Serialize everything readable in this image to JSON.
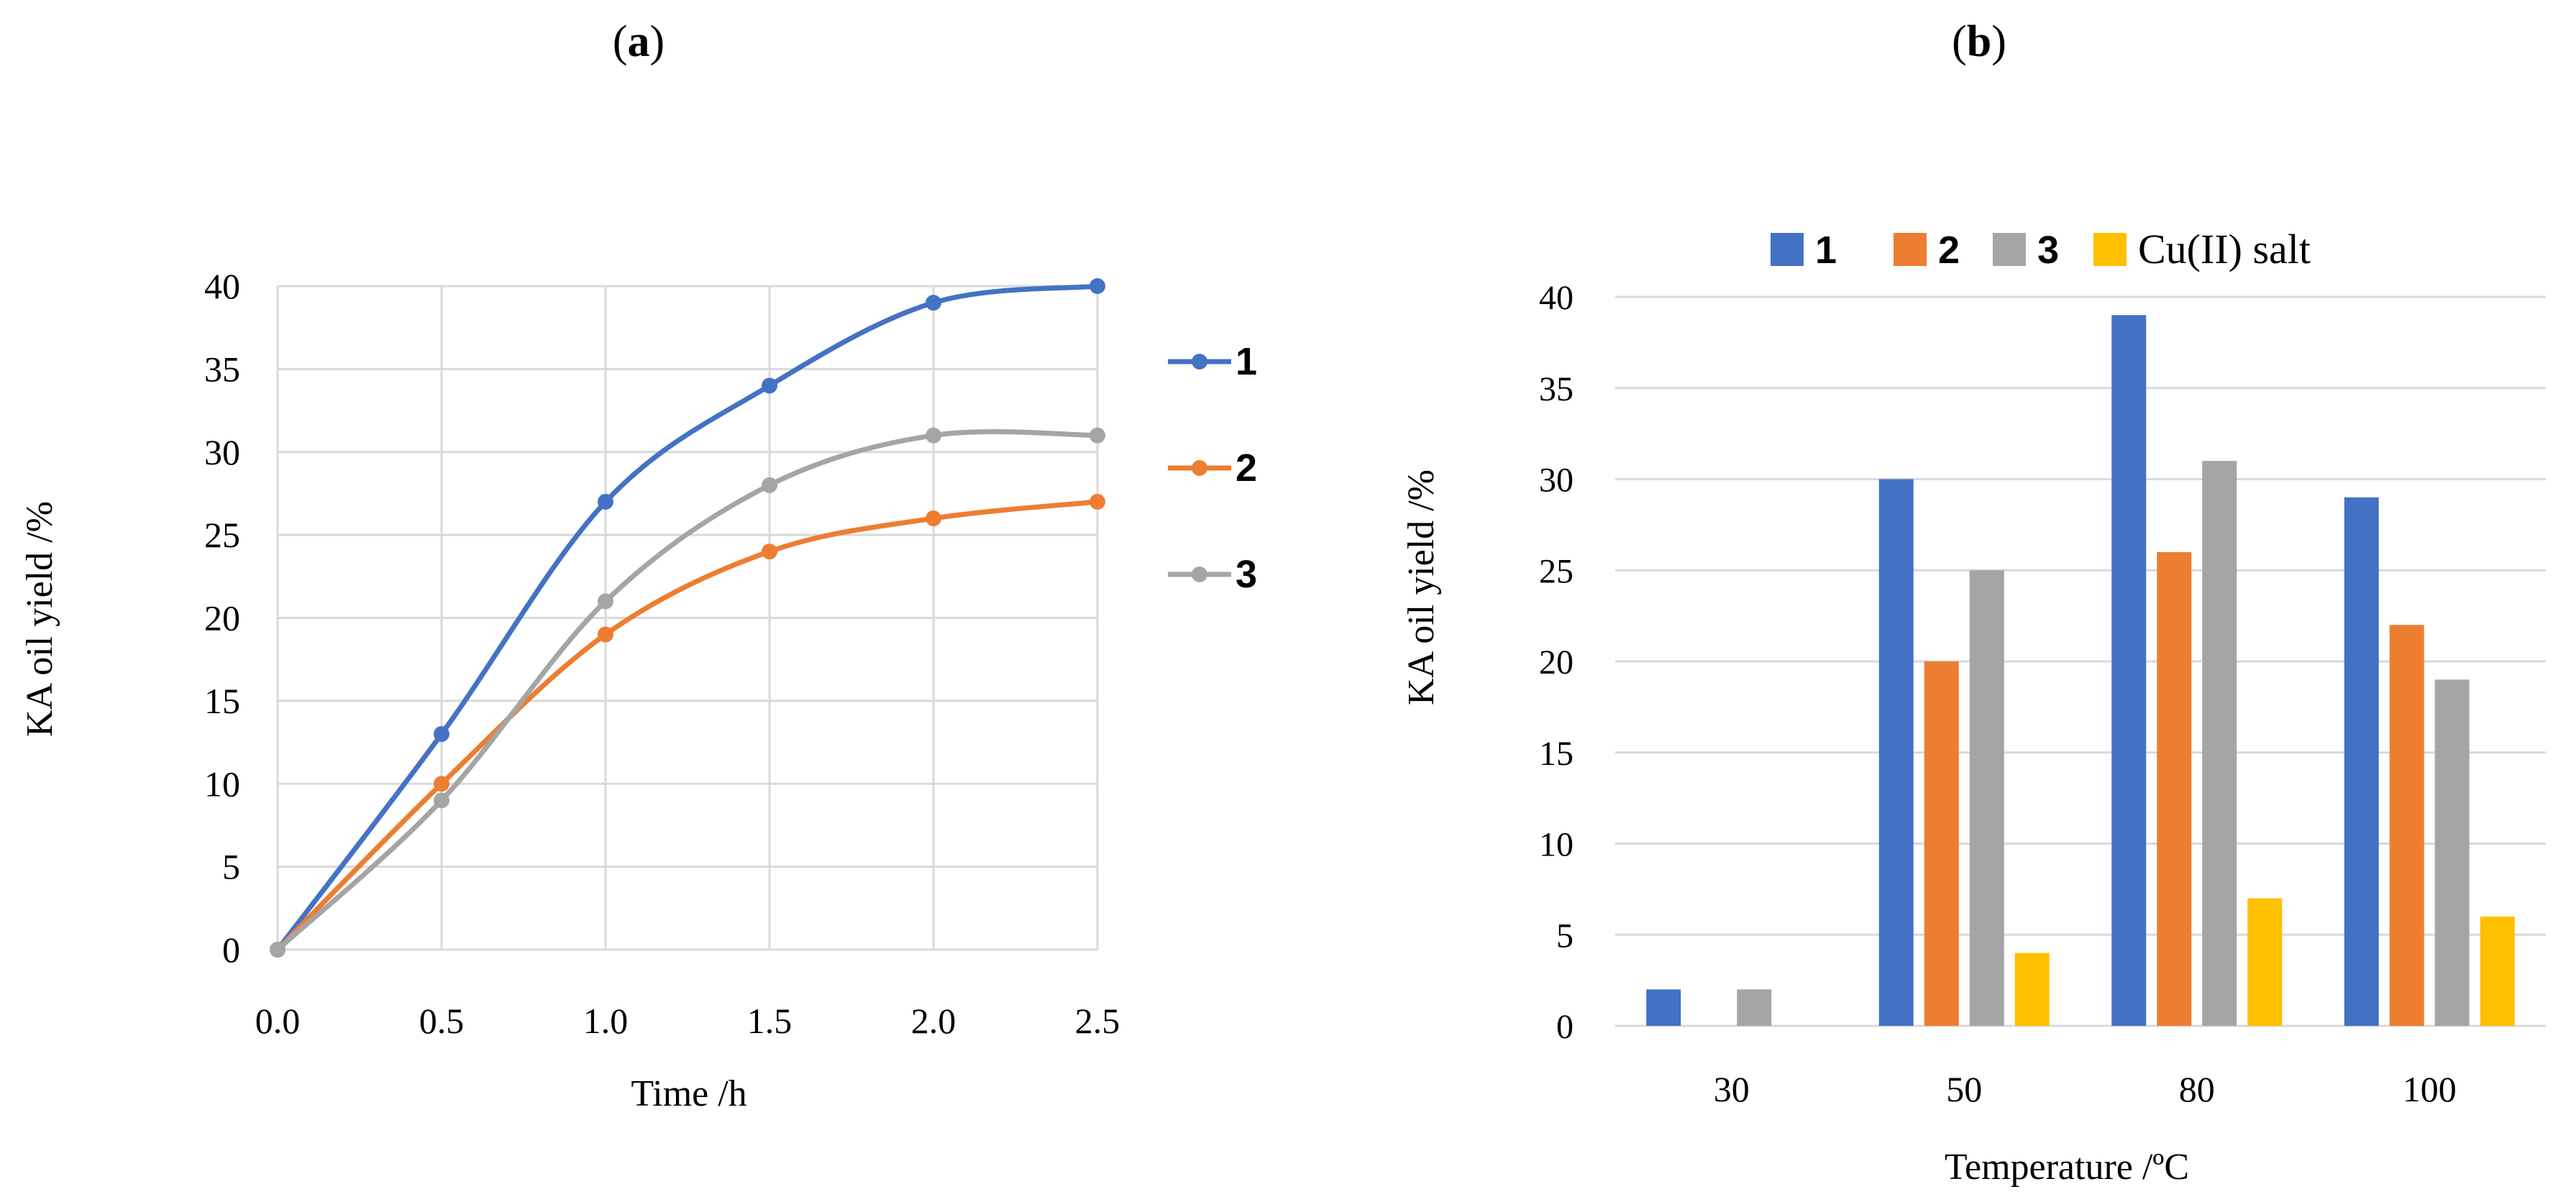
{
  "panels": {
    "a": {
      "label_open": "(",
      "label_letter": "a",
      "label_close": ")"
    },
    "b": {
      "label_open": "(",
      "label_letter": "b",
      "label_close": ")"
    }
  },
  "chart_data": [
    {
      "type": "line",
      "xlabel": "Time /h",
      "ylabel": "KA oil yield /%",
      "x": [
        0.0,
        0.5,
        1.0,
        1.5,
        2.0,
        2.5
      ],
      "x_tick_labels": [
        "0.0",
        "0.5",
        "1.0",
        "1.5",
        "2.0",
        "2.5"
      ],
      "xlim": [
        0,
        2.5
      ],
      "ylim": [
        0,
        40
      ],
      "y_ticks": [
        0,
        5,
        10,
        15,
        20,
        25,
        30,
        35,
        40
      ],
      "grid": "both",
      "legend": "right",
      "series": [
        {
          "name": "1",
          "color": "#4472C4",
          "values": [
            0,
            13,
            27,
            34,
            39,
            40
          ]
        },
        {
          "name": "2",
          "color": "#ED7D31",
          "values": [
            0,
            10,
            19,
            24,
            26,
            27
          ]
        },
        {
          "name": "3",
          "color": "#A5A5A5",
          "values": [
            0,
            9,
            21,
            28,
            31,
            31
          ]
        }
      ]
    },
    {
      "type": "bar",
      "xlabel": "Temperature /ºC",
      "ylabel": "KA oil yield /%",
      "categories": [
        "30",
        "50",
        "80",
        "100"
      ],
      "ylim": [
        0,
        40
      ],
      "y_ticks": [
        0,
        5,
        10,
        15,
        20,
        25,
        30,
        35,
        40
      ],
      "grid": "horizontal",
      "legend": "top",
      "series": [
        {
          "name": "1",
          "color": "#4472C4",
          "values": [
            2,
            30,
            39,
            29
          ]
        },
        {
          "name": "2",
          "color": "#ED7D31",
          "values": [
            0,
            20,
            26,
            22
          ]
        },
        {
          "name": "3",
          "color": "#A5A5A5",
          "values": [
            2,
            25,
            31,
            19
          ]
        },
        {
          "name": "Cu(II) salt",
          "color": "#FFC000",
          "values": [
            0,
            4,
            7,
            6
          ]
        }
      ]
    }
  ]
}
